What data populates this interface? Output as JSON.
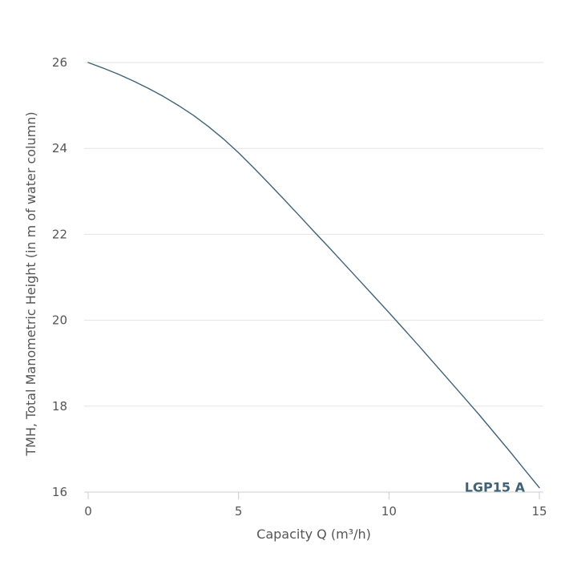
{
  "chart_data": {
    "type": "line",
    "title": "",
    "xlabel": "Capacity Q (m³/h)",
    "ylabel": "TMH, Total Manometric Height (in m of water column)",
    "xlim": [
      0,
      15
    ],
    "ylim": [
      16,
      26
    ],
    "x_ticks": [
      "0",
      "5",
      "10",
      "15"
    ],
    "y_ticks": [
      "16",
      "18",
      "20",
      "22",
      "24",
      "26"
    ],
    "grid": true,
    "series": [
      {
        "name": "LGP15 A",
        "color": "#3e6379",
        "x": [
          0,
          0.5,
          1,
          1.5,
          2,
          2.5,
          3,
          3.5,
          4,
          4.5,
          5,
          5.5,
          6,
          6.5,
          7,
          7.5,
          8,
          8.5,
          9,
          9.5,
          10,
          10.5,
          11,
          11.5,
          12,
          12.5,
          13,
          13.5,
          14,
          14.5,
          15
        ],
        "values": [
          26.0,
          25.87,
          25.73,
          25.57,
          25.4,
          25.21,
          25.0,
          24.77,
          24.51,
          24.22,
          23.9,
          23.55,
          23.19,
          22.82,
          22.45,
          22.07,
          21.7,
          21.32,
          20.94,
          20.56,
          20.18,
          19.79,
          19.4,
          19.0,
          18.6,
          18.2,
          17.8,
          17.38,
          16.96,
          16.53,
          16.1
        ]
      }
    ]
  }
}
